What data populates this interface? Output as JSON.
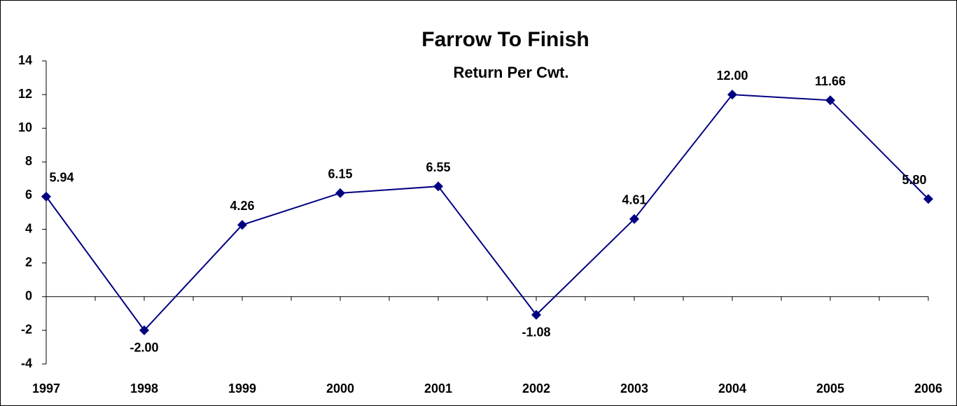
{
  "chart_data": {
    "type": "line",
    "title": "Farrow To Finish",
    "subtitle": "Return Per Cwt.",
    "categories": [
      "1997",
      "1998",
      "1999",
      "2000",
      "2001",
      "2002",
      "2003",
      "2004",
      "2005",
      "2006"
    ],
    "series": [
      {
        "name": "Return Per Cwt.",
        "color": "#000080",
        "values": [
          5.94,
          -2.0,
          4.26,
          6.15,
          6.55,
          -1.08,
          4.61,
          12.0,
          11.66,
          5.8
        ],
        "value_labels": [
          "5.94",
          "-2.00",
          "4.26",
          "6.15",
          "6.55",
          "-1.08",
          "4.61",
          "12.00",
          "11.66",
          "5.80"
        ]
      }
    ],
    "ylim": [
      -4,
      14
    ],
    "yticks": [
      -4,
      -2,
      0,
      2,
      4,
      6,
      8,
      10,
      12,
      14
    ],
    "grid": false
  }
}
